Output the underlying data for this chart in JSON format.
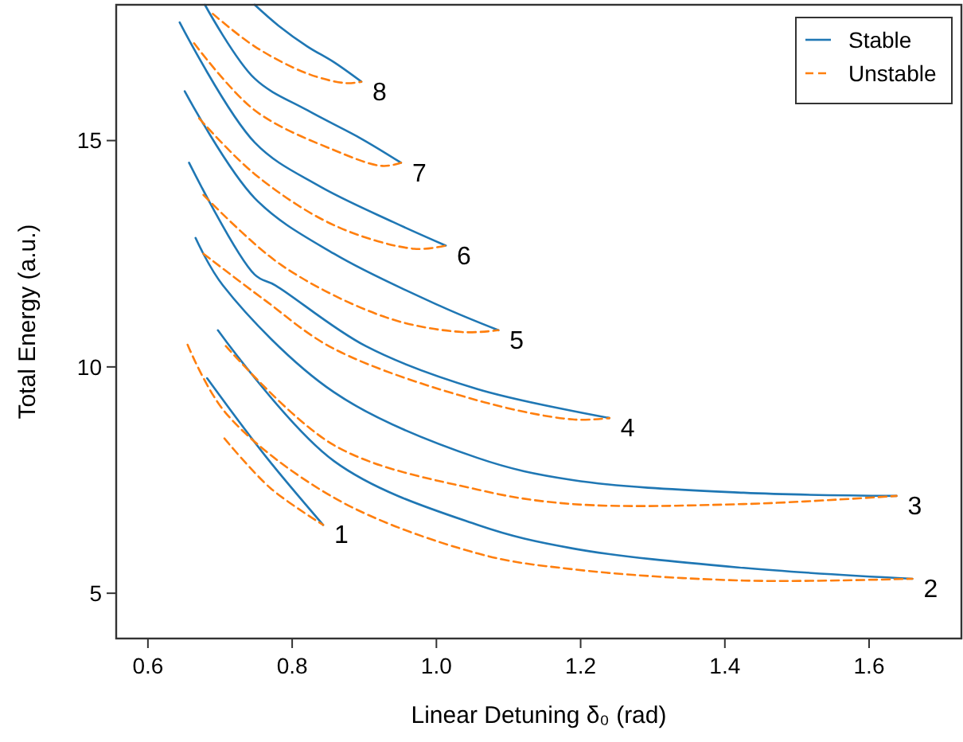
{
  "chart_data": {
    "type": "line",
    "xlabel": "Linear Detuning δ₀ (rad)",
    "ylabel": "Total Energy (a.u.)",
    "xlim": [
      0.556,
      1.728
    ],
    "ylim": [
      4,
      18
    ],
    "xticks": [
      0.6,
      0.8,
      {
        "value": 1,
        "label": "1.0"
      },
      1.2,
      1.4,
      1.6
    ],
    "yticks": [
      5,
      10,
      15
    ],
    "grid": false,
    "legend": "top right",
    "marker": "none",
    "series": [
      {
        "name": "Stable",
        "color": "#1f77b4",
        "line_style": "solid",
        "x": [
          0.682,
          0.763,
          0.843
        ],
        "values": [
          9.75,
          8.03,
          6.51
        ]
      },
      {
        "name": "Unstable",
        "color": "#ff7f0e",
        "line_style": "dashed",
        "x": [
          0.706,
          0.77,
          0.843
        ],
        "values": [
          8.42,
          7.32,
          6.51
        ]
      },
      {
        "color": "#1f77b4",
        "line_style": "solid",
        "x": [
          0.697,
          0.858,
          1.057,
          1.189,
          1.426,
          1.66
        ],
        "values": [
          10.81,
          7.92,
          6.51,
          5.99,
          5.56,
          5.32
        ]
      },
      {
        "color": "#ff7f0e",
        "line_style": "dashed",
        "x": [
          0.655,
          0.708,
          0.858,
          1.057,
          1.189,
          1.426,
          1.66
        ],
        "values": [
          10.49,
          8.98,
          7.11,
          5.88,
          5.53,
          5.28,
          5.32
        ]
      },
      {
        "color": "#1f77b4",
        "line_style": "solid",
        "x": [
          0.666,
          0.704,
          0.858,
          1.057,
          1.189,
          1.426,
          1.638
        ],
        "values": [
          12.85,
          11.8,
          9.44,
          7.99,
          7.5,
          7.22,
          7.15
        ]
      },
      {
        "color": "#ff7f0e",
        "line_style": "dashed",
        "x": [
          0.708,
          0.858,
          1.057,
          1.189,
          1.426,
          1.638
        ],
        "values": [
          10.46,
          8.27,
          7.29,
          6.97,
          6.97,
          7.15
        ]
      },
      {
        "color": "#1f77b4",
        "line_style": "solid",
        "x": [
          0.657,
          0.748,
          0.777,
          0.902,
          1.057,
          1.24
        ],
        "values": [
          14.51,
          12.04,
          11.8,
          10.46,
          9.51,
          8.87
        ]
      },
      {
        "color": "#ff7f0e",
        "line_style": "dashed",
        "x": [
          0.677,
          0.76,
          0.858,
          1.057,
          1.189,
          1.24
        ],
        "values": [
          12.5,
          11.5,
          10.4,
          9.26,
          8.84,
          8.87
        ]
      },
      {
        "color": "#1f77b4",
        "line_style": "solid",
        "x": [
          0.651,
          0.748,
          0.858,
          1.006,
          1.086
        ],
        "values": [
          16.09,
          13.73,
          12.5,
          11.34,
          10.81
        ]
      },
      {
        "color": "#ff7f0e",
        "line_style": "dashed",
        "x": [
          0.677,
          0.785,
          0.931,
          1.035,
          1.086
        ],
        "values": [
          13.8,
          12.25,
          11.09,
          10.77,
          10.81
        ]
      },
      {
        "color": "#1f77b4",
        "line_style": "solid",
        "x": [
          0.644,
          0.748,
          0.836,
          0.94,
          1.013
        ],
        "values": [
          17.61,
          14.96,
          14.01,
          13.2,
          12.68
        ]
      },
      {
        "color": "#ff7f0e",
        "line_style": "dashed",
        "x": [
          0.671,
          0.748,
          0.858,
          0.969,
          1.013
        ],
        "values": [
          15.49,
          14.26,
          13.13,
          12.61,
          12.68
        ]
      },
      {
        "color": "#1f77b4",
        "line_style": "solid",
        "x": [
          0.679,
          0.748,
          0.821,
          0.896,
          0.951
        ],
        "values": [
          18,
          16.37,
          15.67,
          15.04,
          14.51
        ]
      },
      {
        "color": "#ff7f0e",
        "line_style": "dashed",
        "x": [
          0.664,
          0.748,
          0.858,
          0.925,
          0.951
        ],
        "values": [
          17.15,
          15.67,
          14.79,
          14.44,
          14.51
        ]
      },
      {
        "color": "#1f77b4",
        "line_style": "solid",
        "x": [
          0.748,
          0.781,
          0.821,
          0.858,
          0.896
        ],
        "values": [
          18,
          17.54,
          17.08,
          16.73,
          16.3
        ]
      },
      {
        "color": "#ff7f0e",
        "line_style": "dashed",
        "x": [
          0.69,
          0.748,
          0.821,
          0.874,
          0.896
        ],
        "values": [
          17.8,
          17.08,
          16.48,
          16.27,
          16.3
        ]
      }
    ],
    "annotations": [
      {
        "text": "1",
        "x": 0.843,
        "y": 6.51
      },
      {
        "text": "2",
        "x": 1.66,
        "y": 5.32
      },
      {
        "text": "3",
        "x": 1.638,
        "y": 7.15
      },
      {
        "text": "4",
        "x": 1.24,
        "y": 8.87
      },
      {
        "text": "5",
        "x": 1.086,
        "y": 10.81
      },
      {
        "text": "6",
        "x": 1.013,
        "y": 12.68
      },
      {
        "text": "7",
        "x": 0.951,
        "y": 14.51
      },
      {
        "text": "8",
        "x": 0.896,
        "y": 16.3
      }
    ]
  }
}
